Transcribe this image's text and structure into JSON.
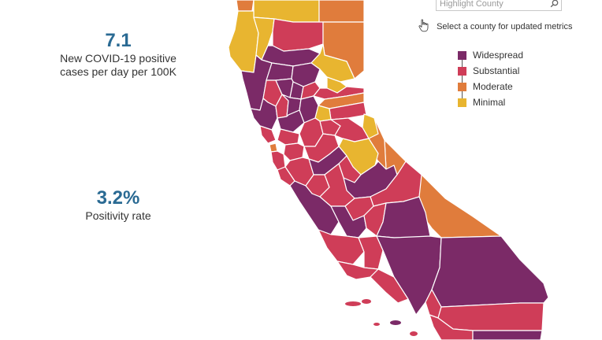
{
  "metrics": {
    "cases": {
      "value": "7.1",
      "label_line1": "New COVID-19 positive",
      "label_line2": "cases per day per 100K"
    },
    "positivity": {
      "value": "3.2%",
      "label": "Positivity rate"
    }
  },
  "search": {
    "placeholder": "Highlight County",
    "icon": "search-icon"
  },
  "hint": {
    "text": "Select a county for updated metrics",
    "icon": "hand-pointer-icon"
  },
  "legend": {
    "items": [
      {
        "label": "Widespread",
        "color": "#7b2a67"
      },
      {
        "label": "Substantial",
        "color": "#cf3d58"
      },
      {
        "label": "Moderate",
        "color": "#e07c3c"
      },
      {
        "label": "Minimal",
        "color": "#e8b530"
      }
    ]
  },
  "colors": {
    "metric_value": "#2a6a93",
    "widespread": "#7b2a67",
    "substantial": "#cf3d58",
    "moderate": "#e07c3c",
    "minimal": "#e8b530"
  }
}
